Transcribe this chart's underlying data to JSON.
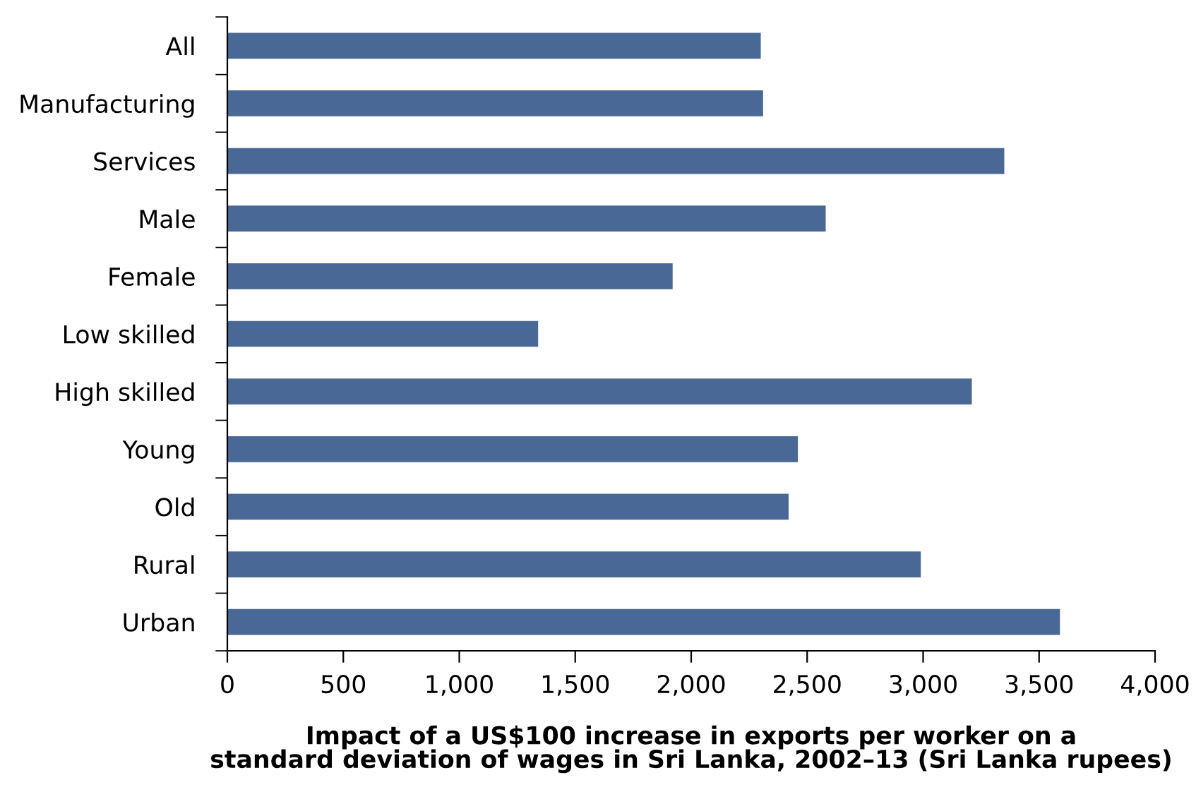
{
  "chart_data": {
    "type": "bar",
    "orientation": "horizontal",
    "xlabel": "Impact of a US$100 increase in exports per worker on a\nstandard deviation of wages in Sri Lanka, 2002–13 (Sri Lanka rupees)",
    "categories": [
      "All",
      "Manufacturing",
      "Services",
      "Male",
      "Female",
      "Low skilled",
      "High skilled",
      "Young",
      "Old",
      "Rural",
      "Urban"
    ],
    "values": [
      2300,
      2310,
      3350,
      2580,
      1920,
      1340,
      3210,
      2460,
      2420,
      2990,
      3590
    ],
    "color": "#4a6896",
    "xlim": [
      0,
      4000
    ],
    "xticks": [
      0,
      {
        "value": 500,
        "label": "500"
      },
      {
        "value": 1000,
        "label": "1,000"
      },
      {
        "value": 1500,
        "label": "1,500"
      },
      {
        "value": 2000,
        "label": "2,000"
      },
      {
        "value": 2500,
        "label": "2,500"
      },
      {
        "value": 3000,
        "label": "3,000"
      },
      {
        "value": 3500,
        "label": "3,500"
      },
      {
        "value": 4000,
        "label": "4,000"
      }
    ],
    "grid": false,
    "legend": false
  }
}
